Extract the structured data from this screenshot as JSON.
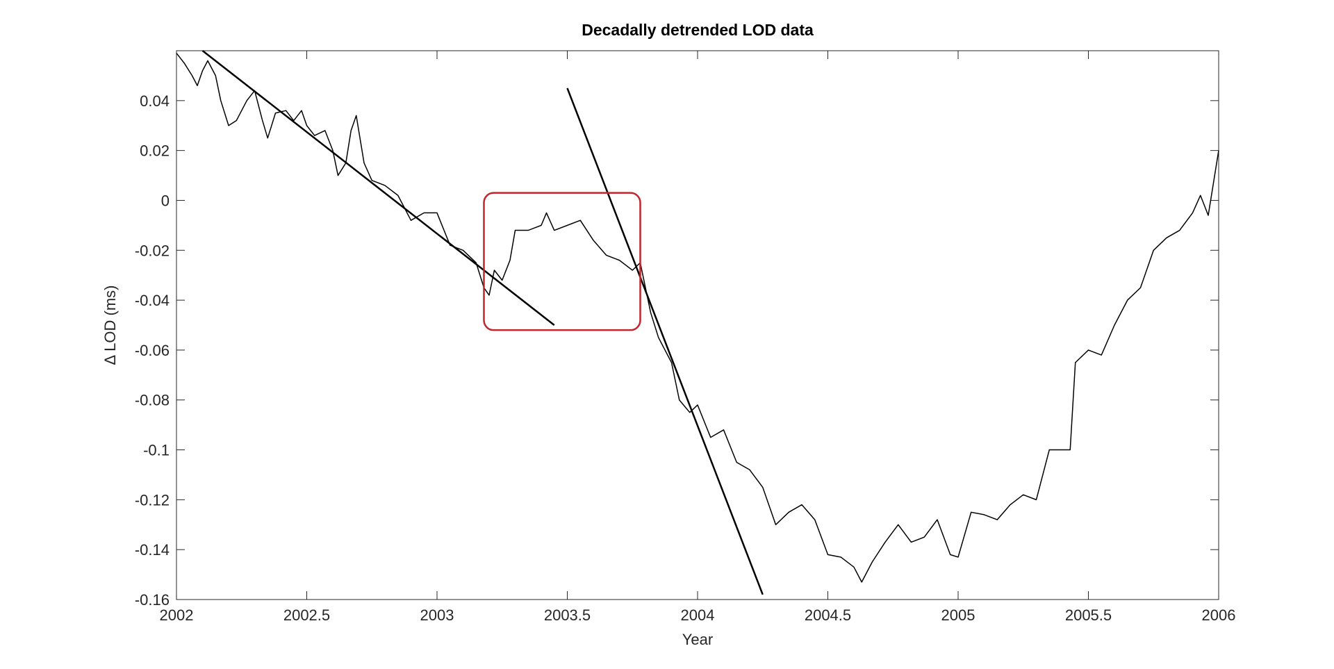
{
  "chart_data": {
    "type": "line",
    "title": "Decadally detrended LOD data",
    "x_label": "Year",
    "y_label": "Δ LOD (ms)",
    "xlim": [
      2002,
      2006
    ],
    "ylim": [
      -0.16,
      0.06
    ],
    "xticks": [
      2002,
      2002.5,
      2003,
      2003.5,
      2004,
      2004.5,
      2005,
      2005.5,
      2006
    ],
    "yticks": [
      -0.16,
      -0.14,
      -0.12,
      -0.1,
      -0.08,
      -0.06,
      -0.04,
      -0.02,
      0,
      0.02,
      0.04
    ],
    "series": [
      {
        "color": "#000000",
        "width": 1.5,
        "x": [
          2002.0,
          2002.03,
          2002.06,
          2002.08,
          2002.1,
          2002.12,
          2002.15,
          2002.17,
          2002.2,
          2002.23,
          2002.27,
          2002.3,
          2002.33,
          2002.35,
          2002.38,
          2002.42,
          2002.45,
          2002.48,
          2002.5,
          2002.53,
          2002.57,
          2002.6,
          2002.62,
          2002.65,
          2002.67,
          2002.69,
          2002.72,
          2002.75,
          2002.8,
          2002.85,
          2002.9,
          2002.95,
          2003.0,
          2003.05,
          2003.1,
          2003.15,
          2003.18,
          2003.2,
          2003.22,
          2003.25,
          2003.28,
          2003.3,
          2003.35,
          2003.4,
          2003.42,
          2003.45,
          2003.5,
          2003.55,
          2003.6,
          2003.65,
          2003.7,
          2003.75,
          2003.78,
          2003.82,
          2003.85,
          2003.9,
          2003.93,
          2003.97,
          2004.0,
          2004.05,
          2004.1,
          2004.15,
          2004.2,
          2004.25,
          2004.3,
          2004.35,
          2004.4,
          2004.45,
          2004.5,
          2004.55,
          2004.6,
          2004.63,
          2004.67,
          2004.72,
          2004.77,
          2004.82,
          2004.87,
          2004.92,
          2004.97,
          2005.0,
          2005.05,
          2005.1,
          2005.15,
          2005.2,
          2005.25,
          2005.3,
          2005.35,
          2005.4,
          2005.43,
          2005.45,
          2005.5,
          2005.55,
          2005.6,
          2005.65,
          2005.7,
          2005.75,
          2005.8,
          2005.85,
          2005.9,
          2005.93,
          2005.96,
          2006.0
        ],
        "values": [
          0.059,
          0.055,
          0.05,
          0.046,
          0.052,
          0.056,
          0.05,
          0.04,
          0.03,
          0.032,
          0.04,
          0.044,
          0.032,
          0.025,
          0.035,
          0.036,
          0.032,
          0.036,
          0.03,
          0.026,
          0.028,
          0.02,
          0.01,
          0.015,
          0.028,
          0.034,
          0.015,
          0.008,
          0.006,
          0.002,
          -0.008,
          -0.005,
          -0.005,
          -0.018,
          -0.02,
          -0.025,
          -0.035,
          -0.038,
          -0.028,
          -0.032,
          -0.024,
          -0.012,
          -0.012,
          -0.01,
          -0.005,
          -0.012,
          -0.01,
          -0.008,
          -0.016,
          -0.022,
          -0.024,
          -0.028,
          -0.025,
          -0.045,
          -0.055,
          -0.065,
          -0.08,
          -0.085,
          -0.082,
          -0.095,
          -0.092,
          -0.105,
          -0.108,
          -0.115,
          -0.13,
          -0.125,
          -0.122,
          -0.128,
          -0.142,
          -0.143,
          -0.147,
          -0.153,
          -0.145,
          -0.137,
          -0.13,
          -0.137,
          -0.135,
          -0.128,
          -0.142,
          -0.143,
          -0.125,
          -0.126,
          -0.128,
          -0.122,
          -0.118,
          -0.12,
          -0.1,
          -0.1,
          -0.1,
          -0.065,
          -0.06,
          -0.062,
          -0.05,
          -0.04,
          -0.035,
          -0.02,
          -0.015,
          -0.012,
          -0.005,
          0.002,
          -0.006,
          0.02
        ]
      },
      {
        "color": "#000000",
        "width": 2.5,
        "x": [
          2002.1,
          2003.45
        ],
        "values": [
          0.06,
          -0.05
        ]
      },
      {
        "color": "#000000",
        "width": 2.5,
        "x": [
          2003.5,
          2004.25
        ],
        "values": [
          0.045,
          -0.158
        ]
      }
    ],
    "highlight": {
      "xlim": [
        2003.18,
        2003.78
      ],
      "ylim": [
        -0.052,
        0.003
      ],
      "color": "#c0262d"
    }
  }
}
